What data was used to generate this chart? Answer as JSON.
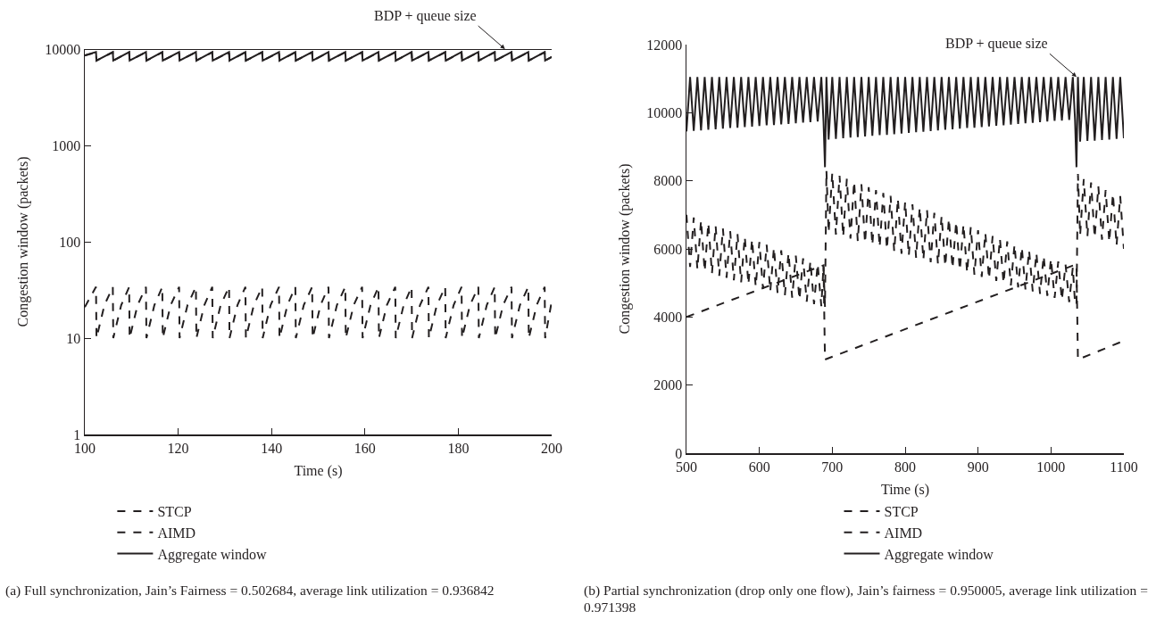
{
  "chart_data": [
    {
      "type": "line",
      "xlabel": "Time (s)",
      "ylabel": "Congestion window (packets)",
      "log": "y",
      "xlim": [
        100,
        200
      ],
      "xticks": [
        100,
        120,
        140,
        160,
        180,
        200
      ],
      "ylim": [
        1,
        10000
      ],
      "yticks": [
        1,
        10,
        100,
        1000,
        10000
      ],
      "legend": "bottom",
      "ref_lines": [
        {
          "axis": "y",
          "value": 10000,
          "color": "#231f20",
          "line_style": "solid"
        }
      ],
      "annotations": [
        {
          "text": "BDP + queue size",
          "x": 190,
          "y": 10000
        },
        "(a) Full synchronization, Jain’s Fairness = 0.502684, average link utilization = 0.936842"
      ],
      "x": [
        100,
        102.4,
        102.5,
        106.0,
        106.1,
        109.5,
        109.6,
        113.1,
        113.2,
        116.6,
        116.7,
        120.2,
        120.3,
        123.8,
        123.9,
        127.3,
        127.4,
        130.9,
        131.0,
        134.4,
        134.5,
        138.0,
        138.1,
        141.6,
        141.7,
        145.1,
        145.2,
        148.7,
        148.8,
        152.2,
        152.3,
        155.8,
        155.9,
        159.4,
        159.5,
        162.9,
        163.0,
        166.5,
        166.6,
        170.0,
        170.1,
        173.6,
        173.7,
        177.2,
        177.3,
        180.7,
        180.8,
        184.3,
        184.4,
        187.8,
        187.9,
        191.4,
        191.5,
        195.0,
        195.1,
        198.5,
        198.6,
        200
      ],
      "series": [
        {
          "name": "STCP",
          "color": "#231f20",
          "line_style": "dashed",
          "values": [
            8580,
            9270,
            7590,
            9270,
            7590,
            9270,
            7590,
            9270,
            7590,
            9270,
            7590,
            9270,
            7590,
            9270,
            7590,
            9270,
            7590,
            9270,
            7590,
            9270,
            7590,
            9270,
            7590,
            9270,
            7590,
            9270,
            7590,
            9270,
            7590,
            9270,
            7590,
            9270,
            7590,
            9270,
            7590,
            9270,
            7590,
            9270,
            7590,
            9270,
            7590,
            9270,
            7590,
            9270,
            7590,
            9270,
            7590,
            9270,
            7590,
            9270,
            7590,
            9270,
            7590,
            9270,
            7590,
            9270,
            7590,
            8270
          ]
        },
        {
          "name": "AIMD",
          "color": "#231f20",
          "line_style": "dashed",
          "x": [
            100,
            102.4,
            102.5,
            104.2,
            106.0,
            106.1,
            107.8,
            109.5,
            109.6,
            111.3,
            113.1,
            113.2,
            114.9,
            116.6,
            116.7,
            118.4,
            120.2,
            120.3,
            122.0,
            123.8,
            123.9,
            125.6,
            127.3,
            127.4,
            129.1,
            130.9,
            131.0,
            132.7,
            134.4,
            134.5,
            136.2,
            138.0,
            138.1,
            139.8,
            141.6,
            141.7,
            143.4,
            145.1,
            145.2,
            146.9,
            148.7,
            148.8,
            150.5,
            152.2,
            152.3,
            154.0,
            155.8,
            155.9,
            157.6,
            159.4,
            159.5,
            161.2,
            162.9,
            163.0,
            164.7,
            166.5,
            166.6,
            168.3,
            170.0,
            170.1,
            171.8,
            173.6,
            173.7,
            175.4,
            177.2,
            177.3,
            179.0,
            180.7,
            180.8,
            182.5,
            184.3,
            184.4,
            186.1,
            187.8,
            187.9,
            189.6,
            191.4,
            191.5,
            193.2,
            195.0,
            195.1,
            196.8,
            198.5,
            198.6,
            200
          ],
          "values": [
            21,
            34,
            10,
            22,
            34,
            10,
            22,
            34,
            10,
            22,
            34,
            10,
            22,
            34,
            10,
            22,
            34,
            10,
            22,
            34,
            10,
            22,
            34,
            10,
            22,
            34,
            10,
            22,
            34,
            10,
            22,
            34,
            10,
            22,
            34,
            10,
            22,
            34,
            10,
            22,
            34,
            10,
            22,
            34,
            10,
            22,
            34,
            10,
            22,
            34,
            10,
            22,
            34,
            10,
            22,
            34,
            10,
            22,
            34,
            10,
            22,
            34,
            10,
            22,
            34,
            10,
            22,
            34,
            10,
            22,
            34,
            10,
            22,
            34,
            10,
            22,
            34,
            10,
            22,
            34,
            10,
            22,
            34,
            10,
            24
          ]
        },
        {
          "name": "Aggregate window",
          "color": "#231f20",
          "line_style": "solid",
          "values": [
            8600,
            9300,
            7600,
            9300,
            7600,
            9300,
            7600,
            9300,
            7600,
            9300,
            7600,
            9300,
            7600,
            9300,
            7600,
            9300,
            7600,
            9300,
            7600,
            9300,
            7600,
            9300,
            7600,
            9300,
            7600,
            9300,
            7600,
            9300,
            7600,
            9300,
            7600,
            9300,
            7600,
            9300,
            7600,
            9300,
            7600,
            9300,
            7600,
            9300,
            7600,
            9300,
            7600,
            9300,
            7600,
            9300,
            7600,
            9300,
            7600,
            9300,
            7600,
            9300,
            7600,
            9300,
            7600,
            9300,
            7600,
            8290
          ]
        }
      ]
    },
    {
      "type": "line",
      "xlabel": "Time (s)",
      "ylabel": "Congestion window (packets)",
      "xlim": [
        500,
        1100
      ],
      "xticks": [
        500,
        600,
        700,
        800,
        900,
        1000,
        1100
      ],
      "ylim": [
        0,
        12000
      ],
      "yticks": [
        0,
        2000,
        4000,
        6000,
        8000,
        10000,
        12000
      ],
      "legend": "bottom",
      "annotations": [
        {
          "text": "BDP + queue size",
          "x": 1035,
          "y": 11050
        },
        "(b) Partial synchronization (drop only one flow), Jain’s fairness = 0.950005, average link utilization = 0.971398"
      ],
      "x": [
        500,
        505,
        510,
        515,
        520,
        525,
        530,
        535,
        540,
        545,
        550,
        555,
        560,
        565,
        570,
        575,
        580,
        585,
        590,
        595,
        600,
        605,
        610,
        615,
        620,
        625,
        630,
        635,
        640,
        645,
        650,
        655,
        660,
        665,
        670,
        675,
        680,
        685,
        688,
        690,
        692,
        695,
        700,
        705,
        710,
        715,
        720,
        725,
        730,
        735,
        740,
        745,
        750,
        755,
        760,
        765,
        770,
        775,
        780,
        785,
        790,
        795,
        800,
        805,
        810,
        815,
        820,
        825,
        830,
        835,
        840,
        845,
        850,
        855,
        860,
        865,
        870,
        875,
        880,
        885,
        890,
        895,
        900,
        905,
        910,
        915,
        920,
        925,
        930,
        935,
        940,
        945,
        950,
        955,
        960,
        965,
        970,
        975,
        980,
        985,
        990,
        995,
        1000,
        1005,
        1010,
        1015,
        1020,
        1025,
        1030,
        1033,
        1035,
        1037,
        1040,
        1045,
        1050,
        1055,
        1060,
        1065,
        1070,
        1075,
        1080,
        1085,
        1090,
        1095,
        1100
      ],
      "series": [
        {
          "name": "STCP",
          "color": "#231f20",
          "line_style": "dashed",
          "values": [
            7000,
            5470,
            6920,
            5400,
            6840,
            5340,
            6760,
            5280,
            6680,
            5210,
            6600,
            5150,
            6520,
            5080,
            6440,
            5020,
            6360,
            4960,
            6280,
            4890,
            6200,
            4830,
            6120,
            4760,
            6040,
            4700,
            5960,
            4640,
            5880,
            4570,
            5800,
            4510,
            5720,
            4450,
            5640,
            4380,
            5560,
            4320,
            5500,
            4300,
            8300,
            6480,
            8230,
            6420,
            8150,
            6360,
            8060,
            6300,
            7980,
            6230,
            7900,
            6170,
            7810,
            6110,
            7730,
            6050,
            7640,
            5990,
            7560,
            5920,
            7480,
            5860,
            7390,
            5800,
            7310,
            5740,
            7220,
            5680,
            7140,
            5610,
            7060,
            5550,
            6970,
            5490,
            6890,
            5430,
            6800,
            5370,
            6720,
            5300,
            6640,
            5240,
            6550,
            5180,
            6470,
            5120,
            6380,
            5060,
            6300,
            4990,
            6220,
            4930,
            6130,
            4870,
            6050,
            4810,
            5960,
            4750,
            5880,
            4680,
            5800,
            4620,
            5710,
            4560,
            5630,
            4500,
            5540,
            4440,
            5460,
            4400,
            4350,
            8200,
            6400,
            8050,
            6370,
            7950,
            6330,
            7840,
            6270,
            7730,
            6200,
            7620,
            6100,
            7550,
            6000
          ]
        },
        {
          "name": "AIMD",
          "color": "#231f20",
          "line_style": "dashed",
          "x": [
            500,
            688,
            690,
            1035,
            1037,
            1100
          ],
          "values": [
            4000,
            5520,
            2750,
            5550,
            2750,
            3300
          ]
        },
        {
          "name": "Aggregate window",
          "color": "#231f20",
          "line_style": "solid",
          "values": [
            9450,
            11050,
            9470,
            11050,
            9480,
            11050,
            9500,
            11050,
            9510,
            11050,
            9530,
            11050,
            9550,
            11050,
            9560,
            11050,
            9580,
            11050,
            9590,
            11050,
            9610,
            11050,
            9630,
            11050,
            9640,
            11050,
            9660,
            11050,
            9670,
            11050,
            9690,
            11050,
            9710,
            11050,
            9720,
            11050,
            9740,
            11050,
            9750,
            8400,
            11050,
            9210,
            11050,
            9230,
            11050,
            9250,
            11050,
            9270,
            11050,
            9280,
            11050,
            9300,
            11050,
            9320,
            11050,
            9340,
            11050,
            9350,
            11050,
            9370,
            11050,
            9390,
            11050,
            9410,
            11050,
            9430,
            11050,
            9440,
            11050,
            9460,
            11050,
            9480,
            11050,
            9500,
            11050,
            9510,
            11050,
            9530,
            11050,
            9550,
            11050,
            9560,
            11050,
            9580,
            11050,
            9600,
            11050,
            9620,
            11050,
            9630,
            11050,
            9650,
            11050,
            9670,
            11050,
            9690,
            11050,
            9700,
            11050,
            9720,
            11050,
            9740,
            11050,
            9760,
            11050,
            9770,
            11050,
            9790,
            11050,
            9800,
            8400,
            11050,
            9150,
            11050,
            9170,
            11050,
            9180,
            11050,
            9200,
            11050,
            9210,
            11050,
            9230,
            11050,
            9250
          ]
        }
      ]
    }
  ]
}
